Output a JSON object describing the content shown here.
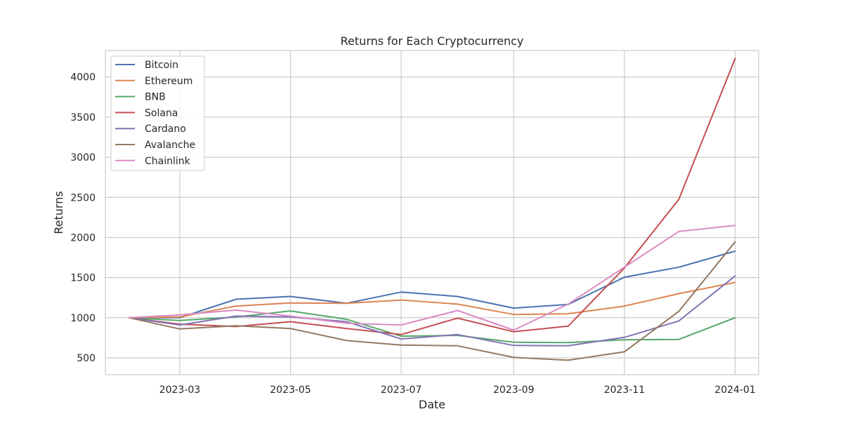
{
  "chart_data": {
    "type": "line",
    "title": "Returns for Each Cryptocurrency",
    "xlabel": "Date",
    "ylabel": "Returns",
    "x": [
      "2023-02-01",
      "2023-03-01",
      "2023-04-01",
      "2023-05-01",
      "2023-06-01",
      "2023-07-01",
      "2023-08-01",
      "2023-09-01",
      "2023-10-01",
      "2023-11-01",
      "2023-12-01",
      "2024-01-01"
    ],
    "xlim": [
      "2023-01-19",
      "2024-01-14"
    ],
    "ylim": [
      290,
      4330
    ],
    "x_ticks": [
      {
        "date": "2023-03-01",
        "label": "2023-03"
      },
      {
        "date": "2023-05-01",
        "label": "2023-05"
      },
      {
        "date": "2023-07-01",
        "label": "2023-07"
      },
      {
        "date": "2023-09-01",
        "label": "2023-09"
      },
      {
        "date": "2023-11-01",
        "label": "2023-11"
      },
      {
        "date": "2024-01-01",
        "label": "2024-01"
      }
    ],
    "y_ticks": [
      500,
      1000,
      1500,
      2000,
      2500,
      3000,
      3500,
      4000
    ],
    "grid": true,
    "legend_position": "top-left",
    "series": [
      {
        "name": "Bitcoin",
        "color": "#4c72b0",
        "values": [
          1000,
          1000,
          1230,
          1265,
          1180,
          1320,
          1265,
          1120,
          1165,
          1505,
          1630,
          1830
        ]
      },
      {
        "name": "Ethereum",
        "color": "#dd8452",
        "values": [
          1000,
          1010,
          1145,
          1185,
          1180,
          1220,
          1170,
          1040,
          1050,
          1145,
          1300,
          1440
        ]
      },
      {
        "name": "BNB",
        "color": "#55a868",
        "values": [
          1000,
          965,
          1010,
          1085,
          980,
          770,
          780,
          695,
          690,
          725,
          730,
          1000
        ]
      },
      {
        "name": "Solana",
        "color": "#c44e52",
        "values": [
          1000,
          920,
          890,
          950,
          865,
          790,
          995,
          825,
          895,
          1620,
          2475,
          4230
        ]
      },
      {
        "name": "Cardano",
        "color": "#8172b3",
        "values": [
          1000,
          910,
          1020,
          1010,
          950,
          735,
          790,
          655,
          650,
          755,
          960,
          1520
        ]
      },
      {
        "name": "Avalanche",
        "color": "#937860",
        "values": [
          1000,
          860,
          900,
          865,
          715,
          660,
          650,
          505,
          470,
          575,
          1080,
          1945
        ]
      },
      {
        "name": "Chainlink",
        "color": "#da8bc3",
        "values": [
          1000,
          1035,
          1095,
          1020,
          930,
          910,
          1090,
          845,
          1170,
          1630,
          2075,
          2150
        ]
      }
    ]
  }
}
